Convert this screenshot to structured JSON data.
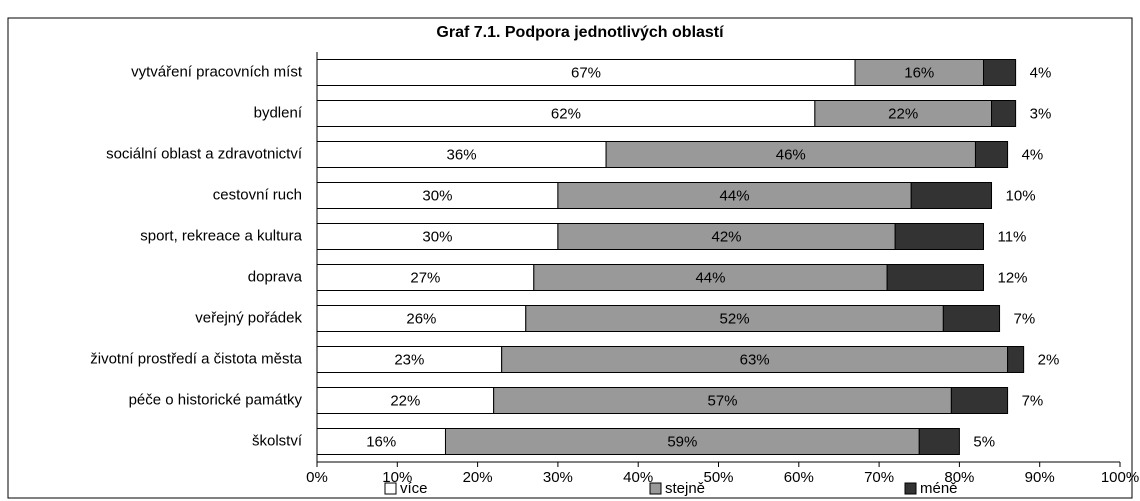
{
  "chart_data": {
    "type": "stacked_barh",
    "title": "Graf 7.1. Podpora jednotlivých oblastí",
    "categories": [
      "vytváření pracovních míst",
      "bydlení",
      "sociální oblast a zdravotnictví",
      "cestovní ruch",
      "sport, rekreace a kultura",
      "doprava",
      "veřejný pořádek",
      "životní prostředí a čistota města",
      "péče o historické památky",
      "školství"
    ],
    "series": [
      {
        "name": "více",
        "color": "#ffffff",
        "values": [
          67,
          62,
          36,
          30,
          30,
          27,
          26,
          23,
          22,
          16
        ],
        "value_labels": [
          "67%",
          "62%",
          "36%",
          "30%",
          "30%",
          "27%",
          "26%",
          "23%",
          "22%",
          "16%"
        ]
      },
      {
        "name": "stejně",
        "color": "#999999",
        "values": [
          16,
          22,
          46,
          44,
          42,
          44,
          52,
          63,
          57,
          59
        ],
        "value_labels": [
          "16%",
          "22%",
          "46%",
          "44%",
          "42%",
          "44%",
          "52%",
          "63%",
          "57%",
          "59%"
        ]
      },
      {
        "name": "méně",
        "color": "#333333",
        "values": [
          4,
          3,
          4,
          10,
          11,
          12,
          7,
          2,
          7,
          5
        ],
        "value_labels": [
          "4%",
          "3%",
          "4%",
          "10%",
          "11%",
          "12%",
          "7%",
          "2%",
          "7%",
          "5%"
        ]
      }
    ],
    "xlim": [
      0,
      100
    ],
    "xticks": [
      {
        "value": 0,
        "label": "0%"
      },
      {
        "value": 10,
        "label": "10%"
      },
      {
        "value": 20,
        "label": "20%"
      },
      {
        "value": 30,
        "label": "30%"
      },
      {
        "value": 40,
        "label": "40%"
      },
      {
        "value": 50,
        "label": "50%"
      },
      {
        "value": 60,
        "label": "60%"
      },
      {
        "value": 70,
        "label": "70%"
      },
      {
        "value": 80,
        "label": "80%"
      },
      {
        "value": 90,
        "label": "90%"
      },
      {
        "value": 100,
        "label": "100%"
      }
    ],
    "legend": "bottom"
  }
}
